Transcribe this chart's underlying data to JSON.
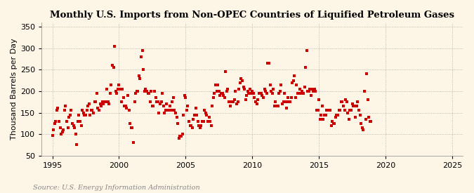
{
  "title": "Monthly U.S. Imports from Non-OPEC Countries of Liquified Petroleum Gases",
  "ylabel": "Thousand Barrels per Day",
  "source": "Source: U.S. Energy Information Administration",
  "xlim": [
    1994.2,
    2025.8
  ],
  "ylim": [
    50,
    360
  ],
  "yticks": [
    50,
    100,
    150,
    200,
    250,
    300,
    350
  ],
  "xticks": [
    1995,
    2000,
    2005,
    2010,
    2015,
    2020,
    2025
  ],
  "marker_color": "#CC0000",
  "background_color": "#FDF5E6",
  "grid_color": "#888888",
  "title_fontsize": 9.5,
  "label_fontsize": 8,
  "source_fontsize": 7,
  "start_year": 1995,
  "values": [
    97,
    110,
    125,
    130,
    155,
    160,
    130,
    115,
    100,
    105,
    110,
    155,
    165,
    130,
    115,
    140,
    145,
    155,
    125,
    120,
    115,
    100,
    75,
    130,
    145,
    130,
    120,
    155,
    150,
    145,
    145,
    155,
    165,
    170,
    145,
    155,
    155,
    150,
    175,
    175,
    195,
    160,
    155,
    170,
    165,
    175,
    170,
    175,
    175,
    205,
    175,
    170,
    195,
    215,
    260,
    255,
    305,
    200,
    195,
    205,
    215,
    205,
    175,
    205,
    185,
    165,
    165,
    160,
    190,
    155,
    125,
    115,
    115,
    80,
    175,
    195,
    200,
    200,
    235,
    230,
    280,
    295,
    250,
    200,
    205,
    200,
    195,
    195,
    175,
    200,
    165,
    165,
    200,
    185,
    175,
    175,
    150,
    170,
    175,
    195,
    165,
    150,
    155,
    170,
    155,
    155,
    165,
    155,
    175,
    185,
    155,
    150,
    140,
    125,
    90,
    95,
    95,
    100,
    145,
    190,
    185,
    155,
    165,
    130,
    120,
    120,
    115,
    135,
    145,
    160,
    145,
    130,
    120,
    115,
    120,
    130,
    130,
    155,
    150,
    145,
    130,
    140,
    130,
    120,
    165,
    185,
    195,
    215,
    200,
    215,
    200,
    190,
    195,
    195,
    190,
    185,
    245,
    200,
    205,
    175,
    165,
    175,
    175,
    175,
    180,
    200,
    170,
    175,
    205,
    220,
    230,
    225,
    210,
    205,
    180,
    190,
    200,
    195,
    205,
    195,
    200,
    195,
    185,
    175,
    170,
    180,
    195,
    195,
    195,
    190,
    185,
    205,
    200,
    195,
    265,
    265,
    215,
    200,
    195,
    205,
    165,
    175,
    165,
    165,
    195,
    200,
    215,
    170,
    175,
    195,
    175,
    160,
    185,
    175,
    175,
    185,
    220,
    225,
    235,
    185,
    215,
    195,
    195,
    205,
    195,
    200,
    195,
    210,
    255,
    295,
    200,
    200,
    205,
    190,
    205,
    200,
    205,
    200,
    155,
    155,
    180,
    135,
    145,
    165,
    135,
    145,
    145,
    155,
    155,
    155,
    155,
    120,
    130,
    125,
    125,
    140,
    145,
    145,
    155,
    155,
    175,
    175,
    165,
    155,
    180,
    175,
    150,
    135,
    155,
    155,
    170,
    165,
    165,
    140,
    165,
    175,
    155,
    145,
    125,
    115,
    110,
    200,
    135,
    240,
    180,
    140,
    130,
    130
  ]
}
